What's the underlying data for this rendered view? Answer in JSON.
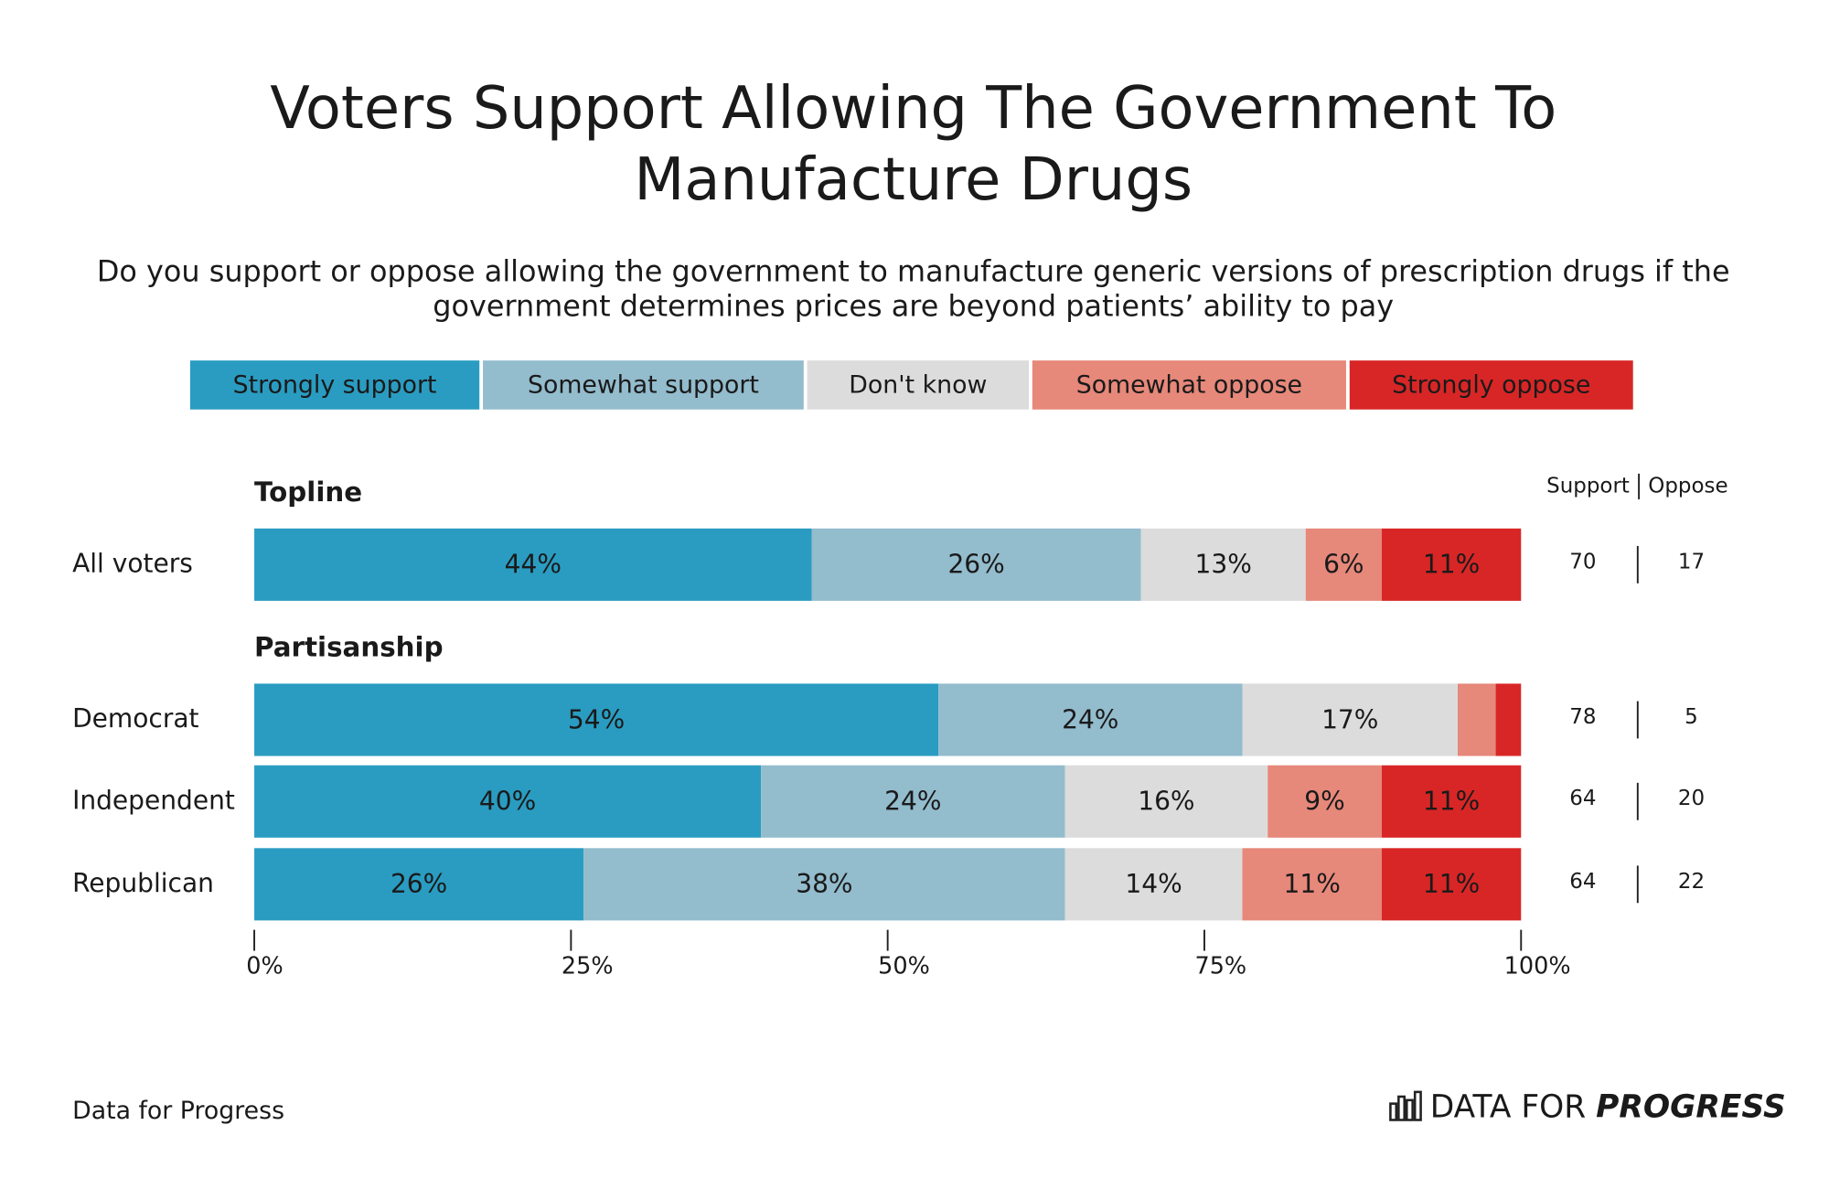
{
  "chart_data": {
    "type": "stacked-bar",
    "title": [
      "Voters Support Allowing The Government To",
      "Manufacture Drugs"
    ],
    "subtitle": [
      "Do you support or oppose allowing the government to manufacture generic versions of prescription drugs if the",
      "government determines prices are beyond patients’ ability to pay"
    ],
    "group_labels": [
      "Topline",
      "Partisanship"
    ],
    "categories": [
      "All voters",
      "Democrat",
      "Independent",
      "Republican"
    ],
    "series": [
      {
        "name": "Strongly support",
        "color": "#2a9cc1",
        "values": [
          44,
          54,
          40,
          26
        ],
        "value_labels": [
          "44%",
          "54%",
          "40%",
          "26%"
        ]
      },
      {
        "name": "Somewhat support",
        "color": "#93bccd",
        "values": [
          26,
          24,
          24,
          38
        ],
        "value_labels": [
          "26%",
          "24%",
          "24%",
          "38%"
        ]
      },
      {
        "name": "Don't know",
        "color": "#dcdcdc",
        "values": [
          13,
          17,
          16,
          14
        ],
        "value_labels": [
          "13%",
          "17%",
          "16%",
          "14%"
        ]
      },
      {
        "name": "Somewhat oppose",
        "color": "#e6887a",
        "values": [
          6,
          3,
          9,
          11
        ],
        "value_labels": [
          "6%",
          null,
          "9%",
          "11%"
        ]
      },
      {
        "name": "Strongly oppose",
        "color": "#d82626",
        "values": [
          11,
          2,
          11,
          11
        ],
        "value_labels": [
          "11%",
          null,
          "11%",
          "11%"
        ]
      }
    ],
    "xlim": [
      0,
      100
    ],
    "xticks": [
      {
        "value": 0,
        "label": "0%"
      },
      {
        "value": 25,
        "label": "25%"
      },
      {
        "value": 50,
        "label": "50%"
      },
      {
        "value": 75,
        "label": "75%"
      },
      {
        "value": 100,
        "label": "100%"
      }
    ],
    "support": {
      "label": "Support",
      "color": "#2a9cc1",
      "values": [
        70,
        78,
        64,
        64
      ]
    },
    "oppose": {
      "label": "Oppose",
      "color": "#d82626",
      "values": [
        17,
        5,
        20,
        22
      ]
    },
    "source": "Data for Progress",
    "logo": {
      "text": "DATA FOR",
      "emphasis": "PROGRESS"
    }
  }
}
